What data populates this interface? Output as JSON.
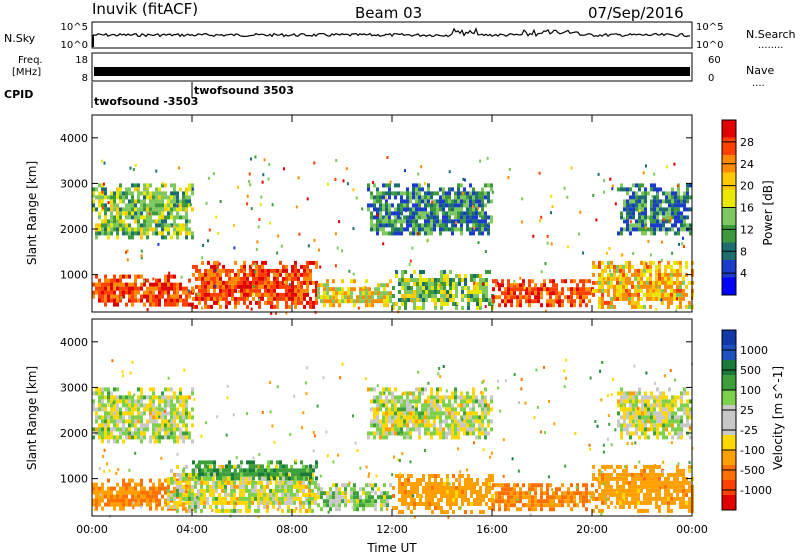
{
  "header": {
    "station": "Inuvik (fitACF)",
    "beam": "Beam 03",
    "date": "07/Sep/2016"
  },
  "panels": {
    "nsky": {
      "left_label": "N.Sky",
      "right_label": "N.Search",
      "right_dots": "........",
      "ticks_left": [
        "10^5",
        "10^0"
      ],
      "ticks_right": [
        "10^5",
        "10^0"
      ]
    },
    "freq": {
      "left_label_1": "Freq.",
      "left_label_2": "[MHz]",
      "right_label": "Nave",
      "right_dots": "....",
      "ticks_left": [
        "18",
        "8"
      ],
      "ticks_right": [
        "60",
        "0"
      ]
    },
    "cpid": {
      "label": "CPID",
      "entries": [
        "twofsound -3503",
        "twofsound 3503"
      ]
    }
  },
  "xaxis": {
    "label": "Time UT",
    "ticks": [
      "00:00",
      "04:00",
      "08:00",
      "12:00",
      "16:00",
      "20:00",
      "00:00"
    ]
  },
  "power_colorbar": {
    "label": "Power [dB]",
    "ticks": [
      "28",
      "24",
      "20",
      "16",
      "12",
      "8",
      "4"
    ],
    "colors": [
      "#e00000",
      "#ff4000",
      "#ff8c00",
      "#ffc800",
      "#e8e800",
      "#7fc860",
      "#3c9a3c",
      "#1c6e6e",
      "#1a3cc8",
      "#0000ff"
    ]
  },
  "velocity_colorbar": {
    "label": "Velocity [m s^-1]",
    "ticks": [
      "1000",
      "500",
      "100",
      "25",
      "-25",
      "-100",
      "-500",
      "-1000"
    ],
    "colors": [
      "#1438a8",
      "#2050c0",
      "#1a7a3a",
      "#3ca03c",
      "#7cd04c",
      "#c8c8c8",
      "#c8c8c8",
      "#ffd800",
      "#ffa000",
      "#ff7000",
      "#ff4000",
      "#e00000"
    ]
  },
  "chart_data": [
    {
      "type": "heatmap",
      "title": "",
      "xlabel": "Time UT",
      "ylabel": "Slant Range [km]",
      "xlim": [
        "00:00",
        "24:00"
      ],
      "ylim": [
        180,
        4500
      ],
      "yticks": [
        1000,
        2000,
        3000,
        4000
      ],
      "colorbar": "Power [dB]",
      "bands": [
        {
          "t": [
            0,
            4
          ],
          "r": [
            300,
            1000
          ],
          "value": 26
        },
        {
          "t": [
            0,
            4
          ],
          "r": [
            1800,
            3000
          ],
          "value": 14
        },
        {
          "t": [
            4,
            9
          ],
          "r": [
            300,
            1300
          ],
          "value": 26
        },
        {
          "t": [
            9,
            12
          ],
          "r": [
            300,
            900
          ],
          "value": 18
        },
        {
          "t": [
            12,
            16
          ],
          "r": [
            300,
            1100
          ],
          "value": 14
        },
        {
          "t": [
            11,
            16
          ],
          "r": [
            1900,
            3000
          ],
          "value": 10
        },
        {
          "t": [
            16,
            20
          ],
          "r": [
            300,
            900
          ],
          "value": 26
        },
        {
          "t": [
            20,
            24
          ],
          "r": [
            300,
            1300
          ],
          "value": 20
        },
        {
          "t": [
            21,
            24
          ],
          "r": [
            1900,
            3000
          ],
          "value": 10
        }
      ]
    },
    {
      "type": "heatmap",
      "title": "",
      "xlabel": "Time UT",
      "ylabel": "Slant Range [km]",
      "xlim": [
        "00:00",
        "24:00"
      ],
      "ylim": [
        180,
        4500
      ],
      "yticks": [
        1000,
        2000,
        3000,
        4000
      ],
      "colorbar": "Velocity [m s^-1]",
      "bands": [
        {
          "t": [
            0,
            4
          ],
          "r": [
            300,
            1000
          ],
          "value": -300
        },
        {
          "t": [
            0,
            4
          ],
          "r": [
            1800,
            3000
          ],
          "value": 0
        },
        {
          "t": [
            3,
            9
          ],
          "r": [
            300,
            1300
          ],
          "value": 0
        },
        {
          "t": [
            4,
            9
          ],
          "r": [
            1000,
            1400
          ],
          "value": 200
        },
        {
          "t": [
            9,
            12
          ],
          "r": [
            300,
            900
          ],
          "value": 60
        },
        {
          "t": [
            12,
            16
          ],
          "r": [
            300,
            1100
          ],
          "value": -200
        },
        {
          "t": [
            11,
            16
          ],
          "r": [
            1900,
            3000
          ],
          "value": 0
        },
        {
          "t": [
            16,
            20
          ],
          "r": [
            300,
            900
          ],
          "value": -300
        },
        {
          "t": [
            20,
            24
          ],
          "r": [
            300,
            1300
          ],
          "value": -200
        },
        {
          "t": [
            21,
            24
          ],
          "r": [
            1900,
            3000
          ],
          "value": 0
        }
      ]
    }
  ]
}
